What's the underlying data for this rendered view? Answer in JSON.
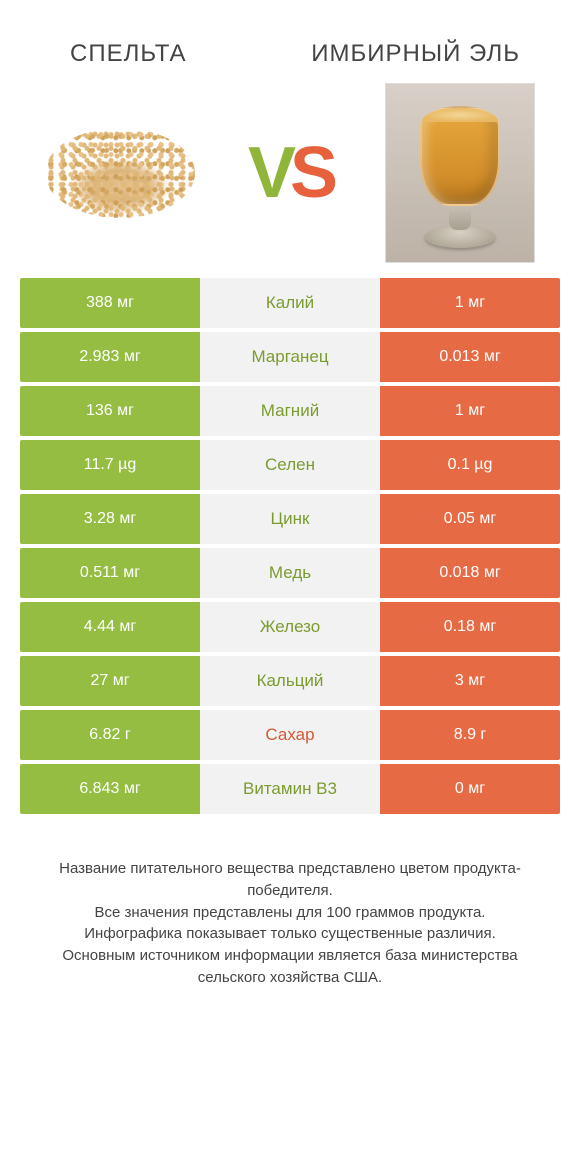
{
  "colors": {
    "left_bg": "#95bd41",
    "right_bg": "#e66b45",
    "mid_bg": "#f2f2f2",
    "mid_text_green": "#7a9c2f",
    "mid_text_orange": "#d35b38",
    "page_bg": "#ffffff"
  },
  "fonts": {
    "title_size_pt": 18,
    "cell_size_pt": 12,
    "footer_size_pt": 11
  },
  "products": {
    "left": {
      "title": "СПЕЛЬТА"
    },
    "right": {
      "title": "ИМБИРНЫЙ ЭЛЬ"
    }
  },
  "vs_label": {
    "v": "V",
    "s": "S"
  },
  "rows": [
    {
      "left": "388 мг",
      "label": "Калий",
      "right": "1 мг",
      "winner": "left"
    },
    {
      "left": "2.983 мг",
      "label": "Марганец",
      "right": "0.013 мг",
      "winner": "left"
    },
    {
      "left": "136 мг",
      "label": "Магний",
      "right": "1 мг",
      "winner": "left"
    },
    {
      "left": "11.7 µg",
      "label": "Селен",
      "right": "0.1 µg",
      "winner": "left"
    },
    {
      "left": "3.28 мг",
      "label": "Цинк",
      "right": "0.05 мг",
      "winner": "left"
    },
    {
      "left": "0.511 мг",
      "label": "Медь",
      "right": "0.018 мг",
      "winner": "left"
    },
    {
      "left": "4.44 мг",
      "label": "Железо",
      "right": "0.18 мг",
      "winner": "left"
    },
    {
      "left": "27 мг",
      "label": "Кальций",
      "right": "3 мг",
      "winner": "left"
    },
    {
      "left": "6.82 г",
      "label": "Сахар",
      "right": "8.9 г",
      "winner": "right"
    },
    {
      "left": "6.843 мг",
      "label": "Витамин B3",
      "right": "0 мг",
      "winner": "left"
    }
  ],
  "footer_lines": [
    "Название питательного вещества представлено цветом продукта-победителя.",
    "Все значения представлены для 100 граммов продукта.",
    "Инфографика показывает только существенные различия.",
    "Основным источником информации является база министерства сельского хозяйства США."
  ]
}
